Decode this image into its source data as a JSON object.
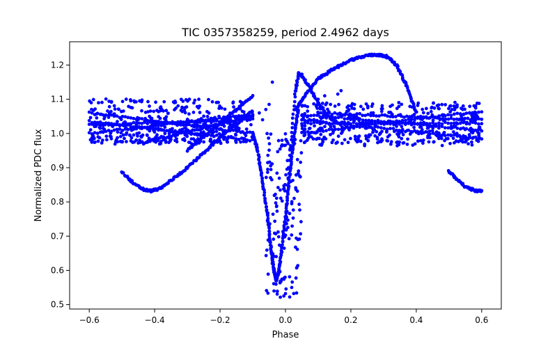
{
  "chart_data": {
    "type": "scatter",
    "title": "TIC 0357358259, period 2.4962 days",
    "xlabel": "Phase",
    "ylabel": "Normalized PDC flux",
    "xlim": [
      -0.66,
      0.66
    ],
    "ylim": [
      0.487,
      1.268
    ],
    "xticks": [
      -0.6,
      -0.4,
      -0.2,
      0.0,
      0.2,
      0.4,
      0.6
    ],
    "xtick_labels": [
      "−0.6",
      "−0.4",
      "−0.2",
      "0.0",
      "0.2",
      "0.4",
      "0.6"
    ],
    "yticks": [
      0.5,
      0.6,
      0.7,
      0.8,
      0.9,
      1.0,
      1.1,
      1.2
    ],
    "ytick_labels": [
      "0.5",
      "0.6",
      "0.7",
      "0.8",
      "0.9",
      "1.0",
      "1.1",
      "1.2"
    ],
    "marker_color": "#0000ff",
    "grid": false,
    "series": [
      {
        "name": "flat_band_left",
        "kind": "band",
        "x_range": [
          -0.6,
          -0.1
        ],
        "levels": [
          1.095,
          1.075,
          1.062,
          1.045,
          1.03,
          1.02,
          1.01,
          1.0,
          0.99,
          0.98,
          0.975
        ],
        "jitter": 0.012,
        "count": 420
      },
      {
        "name": "flat_band_right",
        "kind": "band",
        "x_range": [
          0.05,
          0.6
        ],
        "levels": [
          1.085,
          1.075,
          1.06,
          1.05,
          1.035,
          1.02,
          1.01,
          1.0,
          0.99,
          0.98,
          0.97
        ],
        "jitter": 0.012,
        "count": 420
      },
      {
        "name": "sloped_tracks_left",
        "kind": "lines",
        "lines": [
          {
            "x": [
              -0.6,
              -0.1
            ],
            "y": [
              1.06,
              1.0
            ]
          },
          {
            "x": [
              -0.6,
              -0.1
            ],
            "y": [
              1.0,
              1.055
            ]
          },
          {
            "x": [
              -0.6,
              -0.1
            ],
            "y": [
              1.035,
              0.98
            ]
          },
          {
            "x": [
              -0.45,
              -0.1
            ],
            "y": [
              0.97,
              1.05
            ]
          },
          {
            "x": [
              -0.3,
              -0.1
            ],
            "y": [
              0.95,
              1.11
            ]
          },
          {
            "x": [
              -0.6,
              -0.1
            ],
            "y": [
              1.025,
              1.04
            ]
          }
        ],
        "count": 360
      },
      {
        "name": "sloped_tracks_right",
        "kind": "lines",
        "lines": [
          {
            "x": [
              0.05,
              0.6
            ],
            "y": [
              1.055,
              1.01
            ]
          },
          {
            "x": [
              0.05,
              0.6
            ],
            "y": [
              1.0,
              1.065
            ]
          },
          {
            "x": [
              0.05,
              0.6
            ],
            "y": [
              1.04,
              0.985
            ]
          },
          {
            "x": [
              0.1,
              0.6
            ],
            "y": [
              1.06,
              1.04
            ]
          },
          {
            "x": [
              0.05,
              0.6
            ],
            "y": [
              1.03,
              1.03
            ]
          }
        ],
        "count": 300
      },
      {
        "name": "left_dip_curve",
        "kind": "curve",
        "x": [
          -0.5,
          -0.46,
          -0.43,
          -0.41,
          -0.38,
          -0.34,
          -0.3,
          -0.26,
          -0.22,
          -0.18,
          -0.14,
          -0.1
        ],
        "y": [
          0.888,
          0.85,
          0.835,
          0.832,
          0.84,
          0.87,
          0.9,
          0.935,
          0.97,
          1.005,
          1.035,
          1.065
        ],
        "count": 160
      },
      {
        "name": "right_dip_curve",
        "kind": "curve",
        "x": [
          0.5,
          0.52,
          0.55,
          0.58,
          0.6
        ],
        "y": [
          0.89,
          0.87,
          0.845,
          0.832,
          0.833
        ],
        "count": 50
      },
      {
        "name": "hump_curve",
        "kind": "curve",
        "x": [
          0.03,
          0.06,
          0.1,
          0.15,
          0.2,
          0.25,
          0.28,
          0.31,
          0.34,
          0.37,
          0.4
        ],
        "y": [
          1.07,
          1.11,
          1.16,
          1.19,
          1.215,
          1.228,
          1.23,
          1.225,
          1.2,
          1.14,
          1.06
        ],
        "count": 200
      },
      {
        "name": "spike_curve",
        "kind": "curve",
        "x": [
          0.0,
          0.015,
          0.03,
          0.04,
          0.05,
          0.07,
          0.1,
          0.13,
          0.16
        ],
        "y": [
          0.7,
          0.95,
          1.12,
          1.175,
          1.17,
          1.14,
          1.09,
          1.05,
          1.03
        ],
        "count": 110
      },
      {
        "name": "eclipse_ingress",
        "kind": "curve",
        "x": [
          -0.1,
          -0.085,
          -0.07,
          -0.055,
          -0.045,
          -0.035,
          -0.028
        ],
        "y": [
          1.0,
          0.95,
          0.86,
          0.76,
          0.67,
          0.6,
          0.57
        ],
        "count": 120
      },
      {
        "name": "eclipse_egress",
        "kind": "curve",
        "x": [
          -0.028,
          -0.02,
          -0.01,
          0.0,
          0.01,
          0.02,
          0.03,
          0.04
        ],
        "y": [
          0.57,
          0.6,
          0.67,
          0.76,
          0.85,
          0.94,
          1.02,
          1.07
        ],
        "count": 110
      },
      {
        "name": "eclipse_scatter",
        "kind": "cloud",
        "x_range": [
          -0.06,
          0.05
        ],
        "y_range": [
          0.52,
          1.0
        ],
        "count": 140
      },
      {
        "name": "isolated_points",
        "kind": "points",
        "x": [
          -0.005,
          0.0,
          0.17,
          0.16,
          -0.06,
          -0.07,
          -0.08,
          0.08,
          0.1,
          0.12,
          -0.05,
          -0.04
        ],
        "y": [
          0.525,
          0.532,
          1.125,
          1.115,
          1.07,
          1.04,
          1.06,
          1.12,
          1.1,
          1.11,
          1.085,
          1.15
        ]
      }
    ]
  }
}
